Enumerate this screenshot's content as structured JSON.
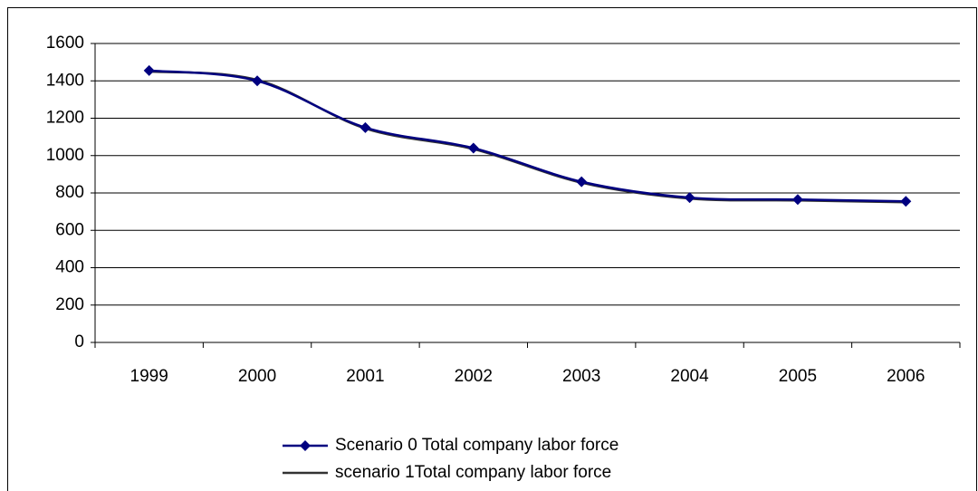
{
  "chart_data": {
    "type": "line",
    "smooth": true,
    "grid": true,
    "categories": [
      "1999",
      "2000",
      "2001",
      "2002",
      "2003",
      "2004",
      "2005",
      "2006"
    ],
    "series": [
      {
        "name": "Scenario 0 Total company labor force",
        "color": "#000080",
        "marker": "diamond",
        "values": [
          1455,
          1400,
          1150,
          1040,
          860,
          775,
          765,
          755
        ]
      },
      {
        "name": "scenario 1Total company labor force",
        "color": "#333333",
        "marker": "none",
        "values": [
          1450,
          1405,
          1145,
          1035,
          855,
          770,
          760,
          750
        ]
      }
    ],
    "ylim": [
      0,
      1600
    ],
    "yticks": [
      0,
      200,
      400,
      600,
      800,
      1000,
      1200,
      1400,
      1600
    ],
    "legend": "bottom"
  }
}
